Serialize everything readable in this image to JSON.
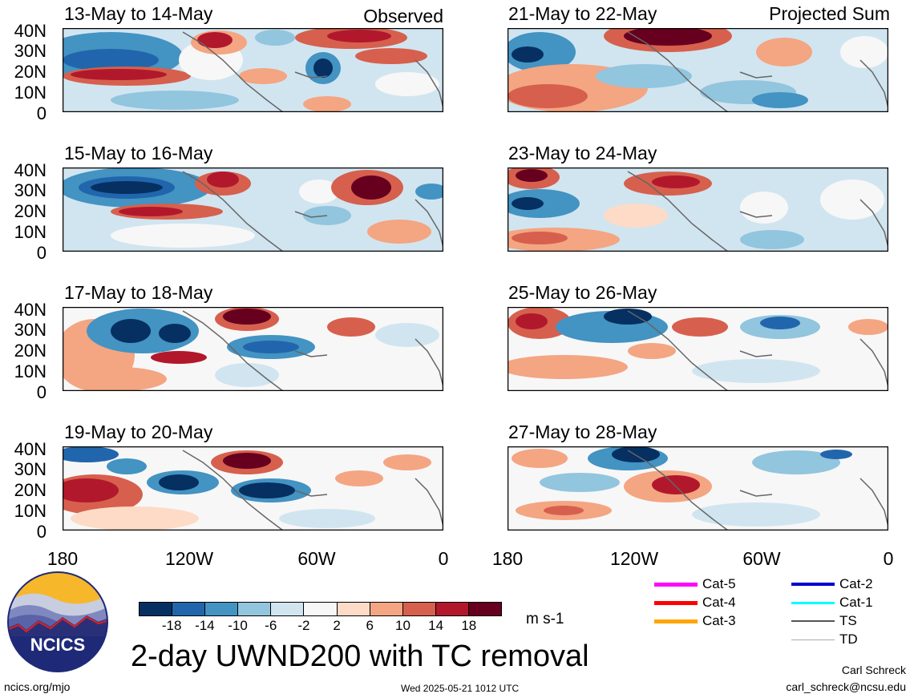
{
  "panels": [
    {
      "title": "13-May to 14-May",
      "label": "Observed"
    },
    {
      "title": "15-May to 16-May",
      "label": ""
    },
    {
      "title": "17-May to 18-May",
      "label": ""
    },
    {
      "title": "19-May to 20-May",
      "label": ""
    },
    {
      "title": "21-May to 22-May",
      "label": "Projected Sum"
    },
    {
      "title": "23-May to 24-May",
      "label": ""
    },
    {
      "title": "25-May to 26-May",
      "label": ""
    },
    {
      "title": "27-May to 28-May",
      "label": ""
    }
  ],
  "y_ticks": [
    "40N",
    "30N",
    "20N",
    "10N",
    "0"
  ],
  "x_ticks": [
    "180",
    "120W",
    "60W",
    "0"
  ],
  "colorbar": {
    "colors": [
      "#053061",
      "#2166ac",
      "#4393c3",
      "#92c5de",
      "#d1e5f0",
      "#f7f7f7",
      "#fddbc7",
      "#f4a582",
      "#d6604d",
      "#b2182b",
      "#67001f"
    ],
    "labels": [
      "-18",
      "-14",
      "-10",
      "-6",
      "-2",
      "2",
      "6",
      "10",
      "14",
      "18"
    ],
    "unit": "m s-1"
  },
  "legend": [
    {
      "label": "Cat-5",
      "color": "#ff00ff"
    },
    {
      "label": "Cat-4",
      "color": "#ff0000"
    },
    {
      "label": "Cat-3",
      "color": "#ffa500"
    },
    {
      "label": "Cat-2",
      "color": "#0000cc"
    },
    {
      "label": "Cat-1",
      "color": "#00ffff"
    },
    {
      "label": "TS",
      "color": "#555555"
    },
    {
      "label": "TD",
      "color": "#aaaaaa"
    }
  ],
  "main_title": "2-day UWND200 with TC removal",
  "logo_text": "NCICS",
  "footer": {
    "url": "ncics.org/mjo",
    "timestamp": "Wed 2025-05-21 1012 UTC",
    "author": "Carl Schreck",
    "email": "carl_schreck@ncsu.edu"
  }
}
